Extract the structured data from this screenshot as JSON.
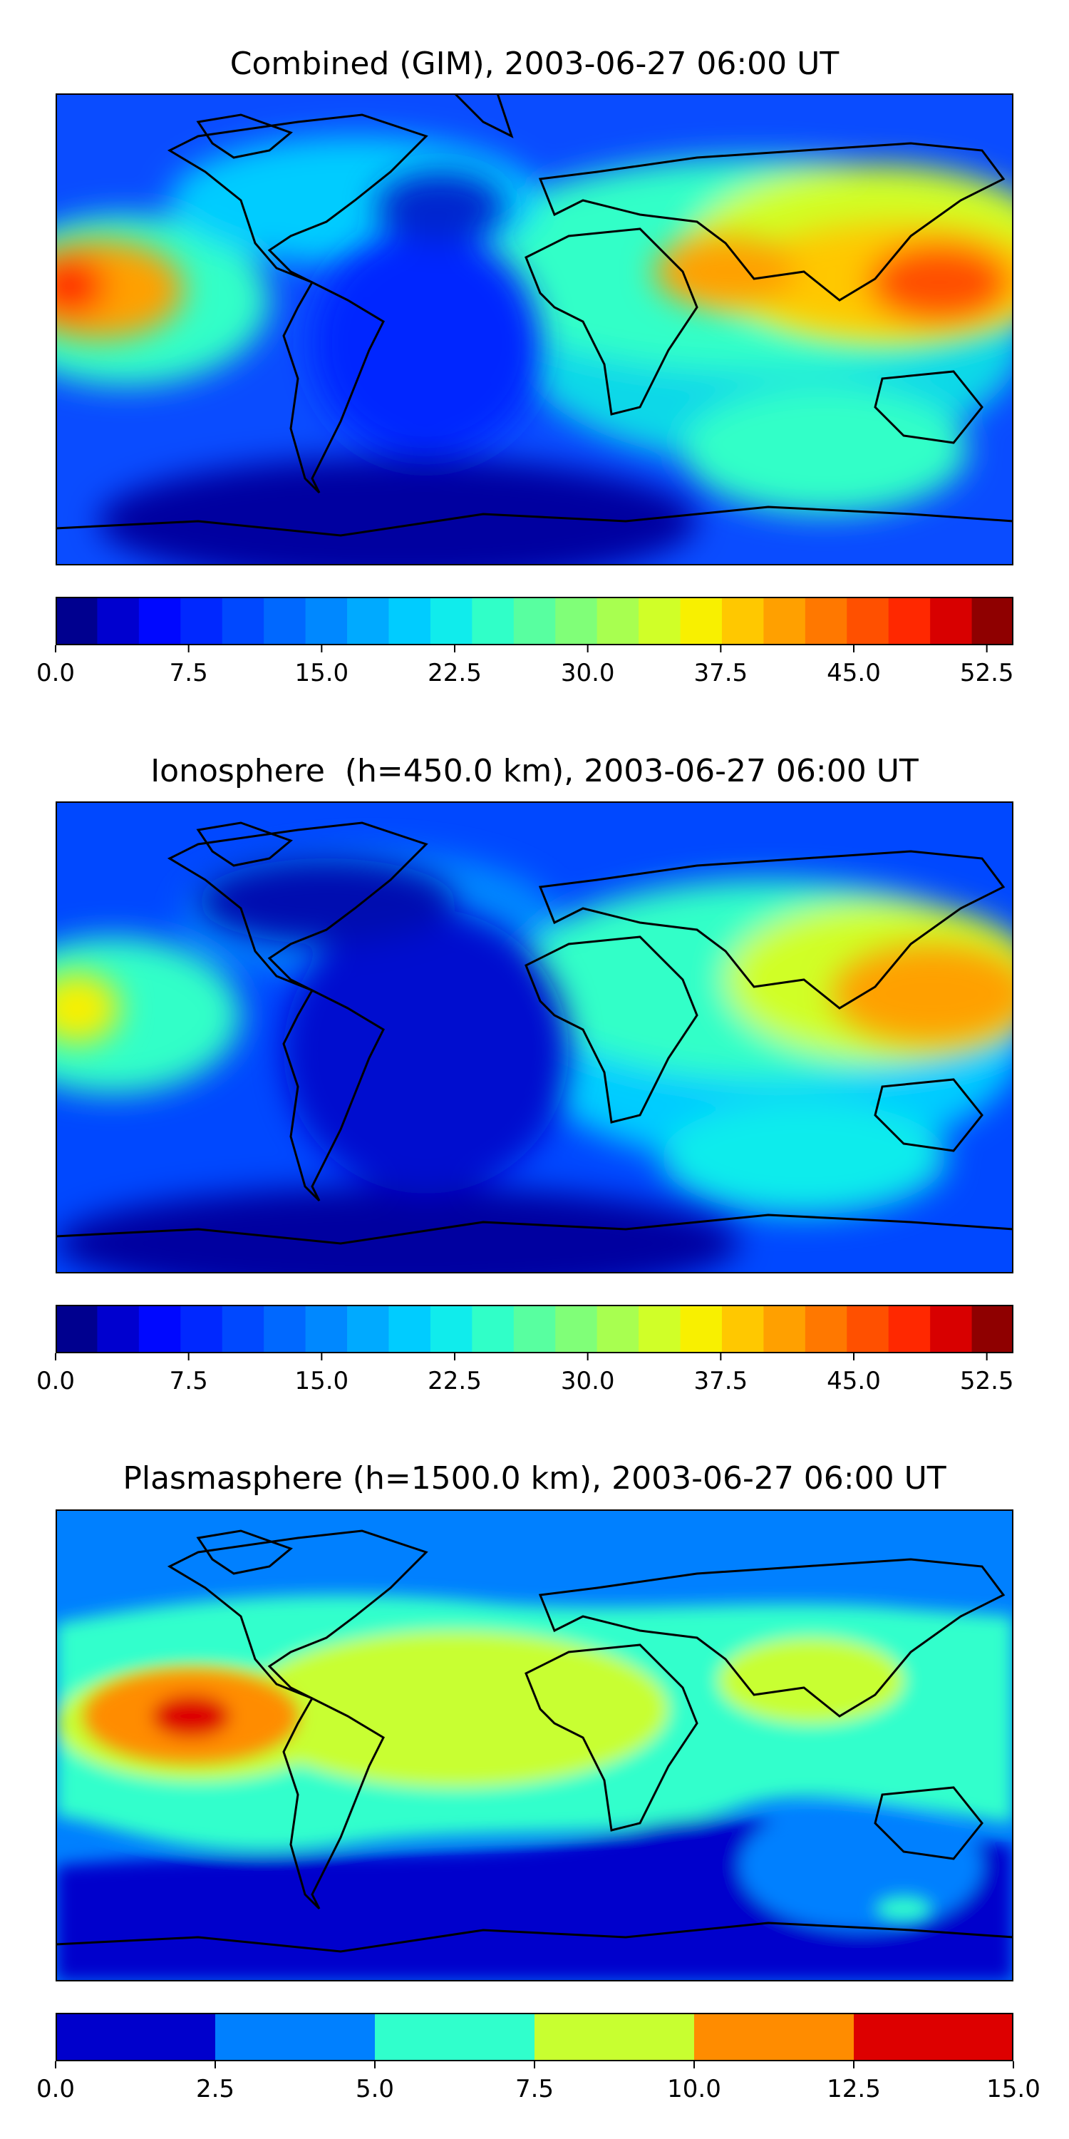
{
  "panels": [
    {
      "title": "Combined (GIM), 2003-06-27 06:00 UT",
      "colorbar": {
        "vmin": 0,
        "vmax": 54,
        "levels": 23,
        "ticks": [
          "0.0",
          "7.5",
          "15.0",
          "22.5",
          "30.0",
          "37.5",
          "45.0",
          "52.5"
        ],
        "tick_values": [
          0,
          7.5,
          15,
          22.5,
          30,
          37.5,
          45,
          52.5
        ]
      }
    },
    {
      "title": "Ionosphere  (h=450.0 km), 2003-06-27 06:00 UT",
      "colorbar": {
        "vmin": 0,
        "vmax": 54,
        "levels": 23,
        "ticks": [
          "0.0",
          "7.5",
          "15.0",
          "22.5",
          "30.0",
          "37.5",
          "45.0",
          "52.5"
        ],
        "tick_values": [
          0,
          7.5,
          15,
          22.5,
          30,
          37.5,
          45,
          52.5
        ]
      }
    },
    {
      "title": "Plasmasphere (h=1500.0 km), 2003-06-27 06:00 UT",
      "colorbar": {
        "vmin": 0,
        "vmax": 15,
        "levels": 6,
        "ticks": [
          "0.0",
          "2.5",
          "5.0",
          "7.5",
          "10.0",
          "12.5",
          "15.0"
        ],
        "tick_values": [
          0,
          2.5,
          5,
          7.5,
          10,
          12.5,
          15
        ]
      }
    }
  ],
  "colors": {
    "combined_bands": [
      "#00008f",
      "#0000cf",
      "#0008ff",
      "#0028ff",
      "#0048ff",
      "#0068ff",
      "#0088ff",
      "#00aaff",
      "#00ccff",
      "#10ecec",
      "#30ffc8",
      "#58ffa0",
      "#80ff78",
      "#a8ff50",
      "#d0ff28",
      "#f8f000",
      "#ffc800",
      "#ffa000",
      "#ff7800",
      "#ff5000",
      "#ff2800",
      "#d80000",
      "#8f0000"
    ],
    "plasma_bands": [
      "#0000cc",
      "#0080ff",
      "#30ffcc",
      "#c8ff30",
      "#ff8c00",
      "#dd0000"
    ],
    "coastline": "#000000"
  }
}
